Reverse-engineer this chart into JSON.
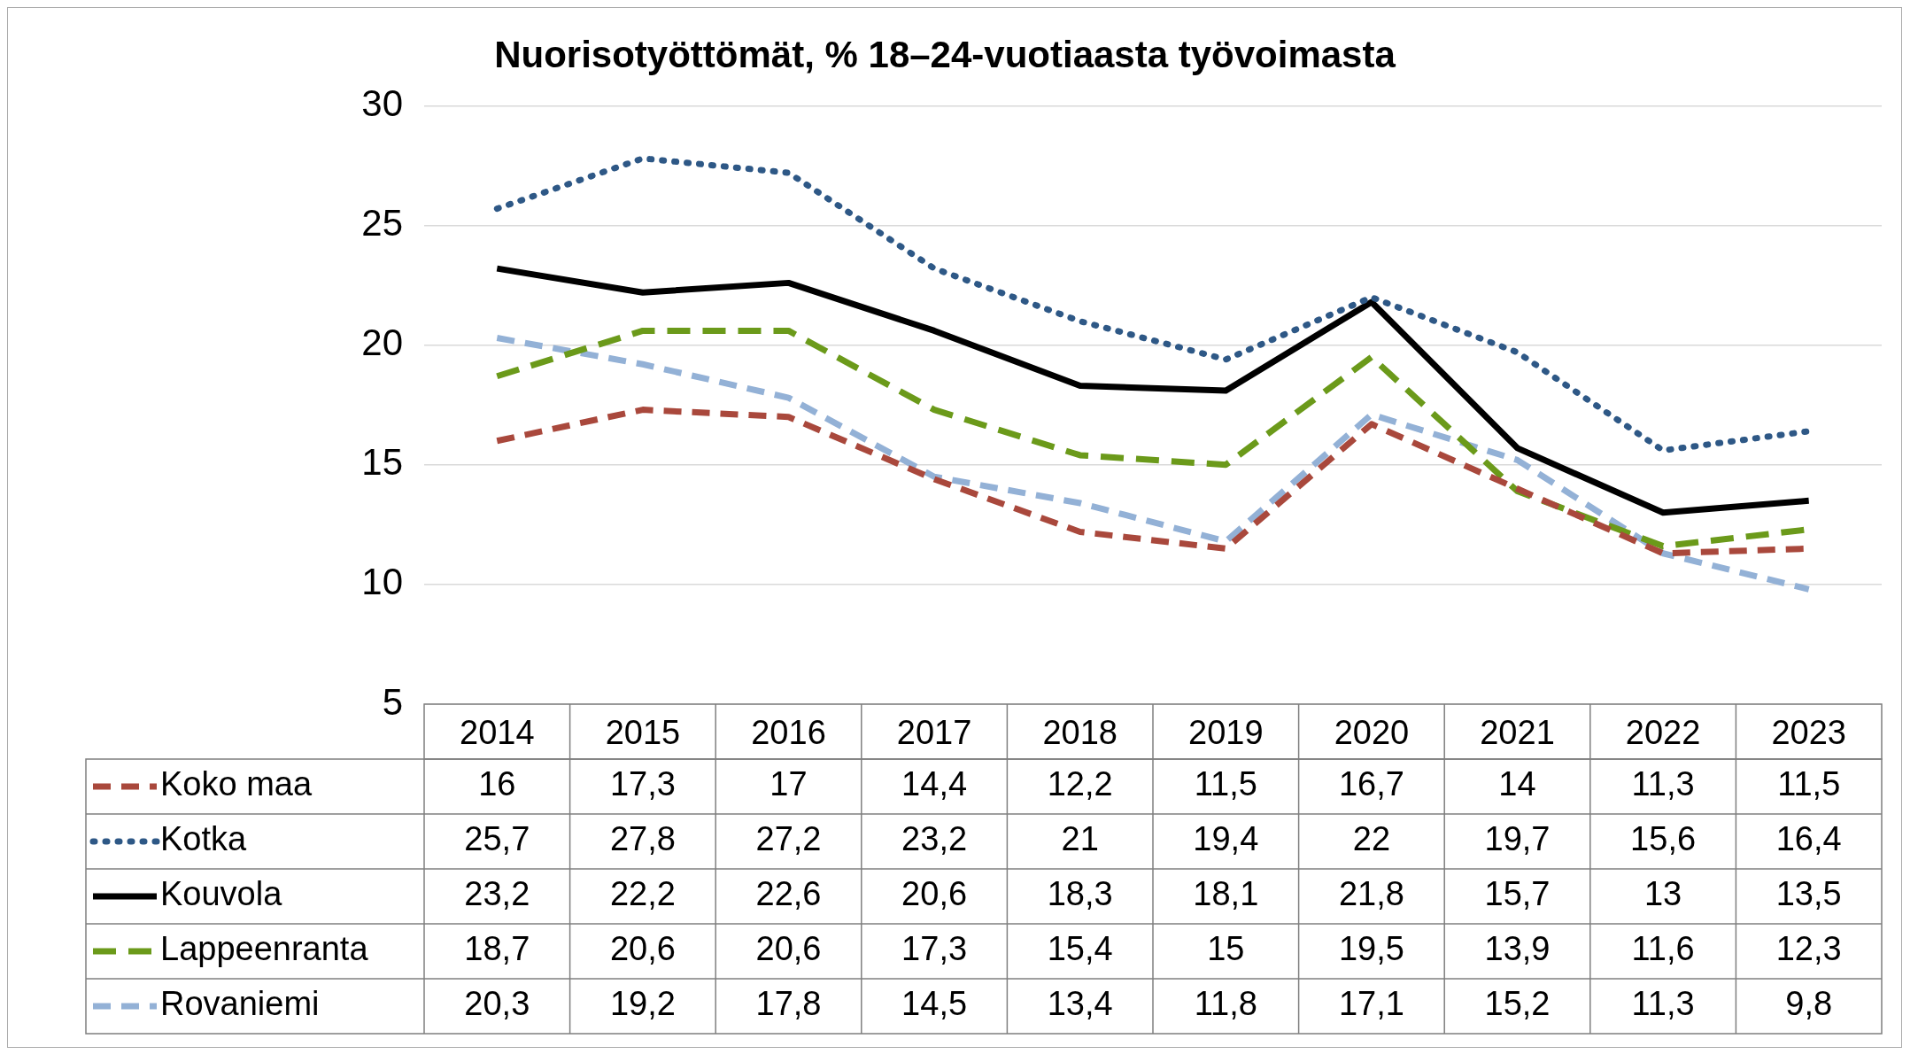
{
  "chart_data": {
    "type": "line",
    "title": "Nuorisotyöttömät, % 18–24-vuotiaasta työvoimasta",
    "categories": [
      "2014",
      "2015",
      "2016",
      "2017",
      "2018",
      "2019",
      "2020",
      "2021",
      "2022",
      "2023"
    ],
    "series": [
      {
        "name": "Koko maa",
        "color": "#a9483c",
        "line_style": "dashed",
        "values": [
          16,
          17.3,
          17,
          14.4,
          12.2,
          11.5,
          16.7,
          14,
          11.3,
          11.5
        ],
        "value_labels": [
          "16",
          "17,3",
          "17",
          "14,4",
          "12,2",
          "11,5",
          "16,7",
          "14",
          "11,3",
          "11,5"
        ]
      },
      {
        "name": "Kotka",
        "color": "#2e5886",
        "line_style": "dotted",
        "values": [
          25.7,
          27.8,
          27.2,
          23.2,
          21,
          19.4,
          22,
          19.7,
          15.6,
          16.4
        ],
        "value_labels": [
          "25,7",
          "27,8",
          "27,2",
          "23,2",
          "21",
          "19,4",
          "22",
          "19,7",
          "15,6",
          "16,4"
        ]
      },
      {
        "name": "Kouvola",
        "color": "#000000",
        "line_style": "solid",
        "values": [
          23.2,
          22.2,
          22.6,
          20.6,
          18.3,
          18.1,
          21.8,
          15.7,
          13,
          13.5
        ],
        "value_labels": [
          "23,2",
          "22,2",
          "22,6",
          "20,6",
          "18,3",
          "18,1",
          "21,8",
          "15,7",
          "13",
          "13,5"
        ]
      },
      {
        "name": "Lappeenranta",
        "color": "#6b9a1a",
        "line_style": "dashed",
        "values": [
          18.7,
          20.6,
          20.6,
          17.3,
          15.4,
          15,
          19.5,
          13.9,
          11.6,
          12.3
        ],
        "value_labels": [
          "18,7",
          "20,6",
          "20,6",
          "17,3",
          "15,4",
          "15",
          "19,5",
          "13,9",
          "11,6",
          "12,3"
        ]
      },
      {
        "name": "Rovaniemi",
        "color": "#93b1d6",
        "line_style": "dashed",
        "values": [
          20.3,
          19.2,
          17.8,
          14.5,
          13.4,
          11.8,
          17.1,
          15.2,
          11.3,
          9.8
        ],
        "value_labels": [
          "20,3",
          "19,2",
          "17,8",
          "14,5",
          "13,4",
          "11,8",
          "17,1",
          "15,2",
          "11,3",
          "9,8"
        ]
      }
    ],
    "ylim": [
      5,
      30
    ],
    "yticks": [
      5,
      10,
      15,
      20,
      25,
      30
    ],
    "grid": "y",
    "legend": "bottom",
    "marker": "none"
  }
}
